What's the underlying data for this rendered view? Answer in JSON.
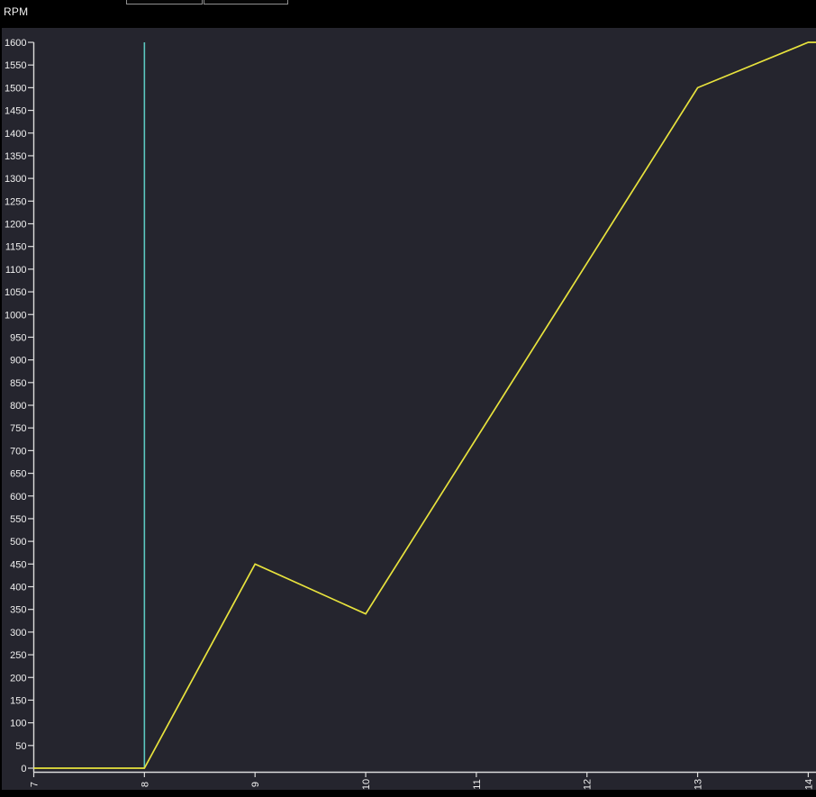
{
  "header": {
    "axis_title": "RPM"
  },
  "toolbar": {
    "buttons": [
      {
        "label": ""
      },
      {
        "label": ""
      }
    ]
  },
  "colors": {
    "window_background": "#000000",
    "plot_background": "#25252e",
    "axis": "#dcdcdc",
    "tick_label": "#f0f0f0",
    "series_rpm": "#e8e33d",
    "cursor": "#5cc8c0"
  },
  "chart_data": {
    "type": "line",
    "title": "",
    "ylabel": "RPM",
    "xlabel": "",
    "xlim": [
      7,
      14.07
    ],
    "ylim": [
      0,
      1600
    ],
    "x_ticks": [
      7,
      8,
      9,
      10,
      11,
      12,
      13,
      14
    ],
    "y_tick_step": 50,
    "x_tick_label_rotation": -90,
    "grid": false,
    "legend": "none",
    "series": [
      {
        "name": "RPM",
        "color": "#e8e33d",
        "points": [
          [
            7,
            0
          ],
          [
            8,
            0
          ],
          [
            9,
            450
          ],
          [
            10,
            340
          ],
          [
            13,
            1500
          ],
          [
            14,
            1600
          ],
          [
            14.07,
            1600
          ]
        ]
      }
    ],
    "markers": [
      {
        "type": "vline",
        "name": "cursor-line",
        "x": 8,
        "y_from": 0,
        "y_to": 1600,
        "color": "#5cc8c0"
      }
    ]
  }
}
